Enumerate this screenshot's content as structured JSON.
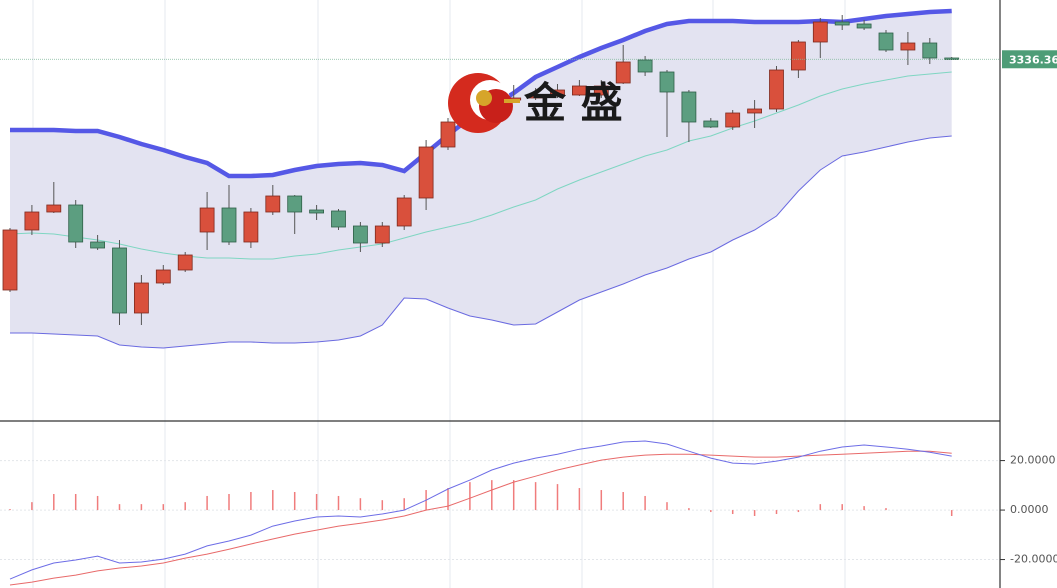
{
  "chart_data": [
    {
      "type": "candlestick",
      "categories": [
        null,
        null,
        null,
        null,
        null,
        null,
        null,
        null,
        null,
        null,
        null,
        null,
        null,
        null,
        null,
        null,
        null,
        null,
        null,
        null,
        null,
        null,
        null,
        null,
        null,
        null,
        null,
        null,
        null,
        null,
        null,
        null,
        null,
        null,
        null,
        null,
        null,
        null,
        null,
        null,
        null,
        null,
        null,
        null
      ],
      "open": [
        3221,
        3251,
        3260,
        3263.5,
        3245,
        3242,
        3209.5,
        3224.5,
        3231,
        3250,
        3262,
        3245,
        3260,
        3268,
        3261,
        3260.5,
        3253,
        3244.5,
        3253,
        3267,
        3292.5,
        3305,
        3312,
        3316,
        3317,
        3318.5,
        3318.5,
        3318.5,
        3324.5,
        3336,
        3330,
        3320,
        3305.5,
        3302.5,
        3309.5,
        3311.5,
        3331,
        3345,
        3355,
        3354,
        3349.5,
        3341,
        3344.5,
        3337
      ],
      "high": [
        3252,
        3263.5,
        3275,
        3266,
        3248.5,
        3246,
        3228.5,
        3233.5,
        3240,
        3270,
        3273.5,
        3262,
        3273.5,
        3268.5,
        3263.5,
        3261.5,
        3255,
        3255,
        3268.5,
        3296,
        3307,
        3316,
        3321,
        3323.5,
        3322,
        3324,
        3326,
        3326,
        3343.5,
        3338,
        3331,
        3321,
        3307,
        3311,
        3316,
        3333,
        3346,
        3357,
        3358.5,
        3356,
        3351,
        3350,
        3347,
        3337.5
      ],
      "low": [
        3220,
        3248.5,
        3259.5,
        3242,
        3241,
        3203.5,
        3203.5,
        3223.5,
        3230,
        3241,
        3243.5,
        3242,
        3258.5,
        3249,
        3256,
        3251,
        3240,
        3242.5,
        3251,
        3261,
        3291,
        3302,
        3308.5,
        3314.5,
        3316,
        3317,
        3318,
        3317,
        3324,
        3328,
        3297.5,
        3295,
        3302,
        3301,
        3302,
        3310,
        3327,
        3337,
        3351,
        3351,
        3340,
        3333.5,
        3334,
        3336
      ],
      "close": [
        3251,
        3260,
        3263.5,
        3245,
        3242,
        3209.5,
        3224.5,
        3231,
        3238.5,
        3262,
        3245,
        3260,
        3268,
        3260,
        3259.5,
        3252.5,
        3244.5,
        3253,
        3267,
        3292.5,
        3305,
        3313.5,
        3316,
        3317,
        3318.5,
        3321,
        3323,
        3323,
        3335,
        3330,
        3320,
        3305,
        3302.5,
        3309.5,
        3311.5,
        3331,
        3345,
        3355,
        3353.5,
        3352,
        3341,
        3344.5,
        3337,
        3336.36
      ],
      "up_color": "#d9503c",
      "down_color": "#5c9e80",
      "series": [
        {
          "color": "#5558e6",
          "values": [
            3301,
            3301,
            3301,
            3300.5,
            3300.5,
            3297.5,
            3294,
            3291,
            3287.5,
            3284.5,
            3278,
            3278,
            3278.5,
            3281,
            3283,
            3284,
            3284.5,
            3283.5,
            3280.5,
            3289.5,
            3298.5,
            3307,
            3312.5,
            3319.5,
            3327.5,
            3332.5,
            3337.5,
            3342,
            3346,
            3350.5,
            3354,
            3355.5,
            3355.5,
            3355.5,
            3355,
            3355,
            3355,
            3355.5,
            3355,
            3356.5,
            3358,
            3359,
            3360,
            3360.5
          ]
        },
        {
          "color": "#7fd6c2",
          "values": [
            3249,
            3249.5,
            3249,
            3247.5,
            3246,
            3244,
            3241.5,
            3239.5,
            3238,
            3237,
            3237,
            3236.5,
            3236.5,
            3238,
            3239,
            3241,
            3242.5,
            3244,
            3247,
            3250,
            3252.5,
            3255,
            3258.5,
            3262.5,
            3266,
            3271.5,
            3276,
            3280,
            3284,
            3288,
            3291,
            3295.5,
            3298,
            3302,
            3305.5,
            3309.5,
            3313.5,
            3318,
            3321.5,
            3324,
            3326,
            3328,
            3329,
            3330
          ]
        },
        {
          "color": "#6a6ae0",
          "values": [
            3199.5,
            3199.5,
            3199,
            3198.5,
            3198,
            3193.5,
            3192.5,
            3192,
            3193,
            3194,
            3195,
            3195,
            3194.5,
            3194.5,
            3195,
            3196,
            3198,
            3203.5,
            3217,
            3216.5,
            3212,
            3208,
            3206,
            3203.5,
            3204,
            3210,
            3216,
            3220,
            3224,
            3228.5,
            3232,
            3236.5,
            3240,
            3246,
            3251,
            3258,
            3270.5,
            3281,
            3288,
            3290,
            3292.5,
            3295,
            3297,
            3298
          ]
        }
      ],
      "band_color": "#e3e3f1",
      "ylim": [
        3156,
        3366
      ],
      "last_price": 3336.36,
      "logo_text": "金 盛"
    },
    {
      "type": "macd",
      "dif": {
        "color": "#6d6de6",
        "values": [
          -27.9,
          -24.2,
          -21.4,
          -20.2,
          -18.6,
          -21.4,
          -21.0,
          -19.8,
          -17.8,
          -14.5,
          -12.5,
          -10.1,
          -6.5,
          -4.4,
          -2.8,
          -2.4,
          -2.8,
          -1.6,
          0,
          4.0,
          8.5,
          12.1,
          16.2,
          19.0,
          21.0,
          22.6,
          24.6,
          25.9,
          27.5,
          27.9,
          26.7,
          23.8,
          21.0,
          19.0,
          18.6,
          19.8,
          21.4,
          23.8,
          25.5,
          26.3,
          25.5,
          24.6,
          23.4,
          21.8
        ]
      },
      "dea": {
        "color": "#e86a6a",
        "values": [
          -30.3,
          -29.1,
          -27.5,
          -26.3,
          -24.6,
          -23.4,
          -22.6,
          -21.4,
          -19.4,
          -17.8,
          -15.8,
          -13.7,
          -11.7,
          -9.7,
          -8.1,
          -6.5,
          -5.3,
          -4.0,
          -2.4,
          0,
          1.6,
          4.8,
          8.1,
          11.3,
          13.7,
          16.2,
          18.2,
          20.2,
          21.4,
          22.2,
          22.6,
          22.6,
          22.2,
          21.8,
          21.4,
          21.4,
          21.8,
          22.2,
          22.6,
          23.0,
          23.4,
          23.8,
          23.8,
          23.0
        ]
      },
      "histogram": {
        "color": "#f07c7c",
        "values": [
          0.4,
          3.2,
          6.5,
          6.5,
          5.7,
          2.4,
          2.4,
          2.4,
          3.2,
          5.7,
          6.5,
          7.3,
          8.1,
          7.3,
          6.5,
          5.7,
          4.8,
          4.0,
          4.8,
          8.1,
          8.9,
          11.3,
          12.1,
          12.1,
          11.3,
          10.5,
          8.9,
          8.1,
          7.3,
          5.7,
          3.2,
          0.8,
          -0.8,
          -1.6,
          -2.4,
          -1.6,
          -0.8,
          2.4,
          2.4,
          1.6,
          0.8,
          0,
          0,
          -2.4
        ]
      },
      "ylim": [
        -31.5,
        36
      ],
      "yticks": [
        {
          "value": 20,
          "label": "20.0000"
        },
        {
          "value": 0,
          "label": "0.0000"
        },
        {
          "value": -20,
          "label": "-20.0000"
        }
      ],
      "grid": true
    }
  ]
}
